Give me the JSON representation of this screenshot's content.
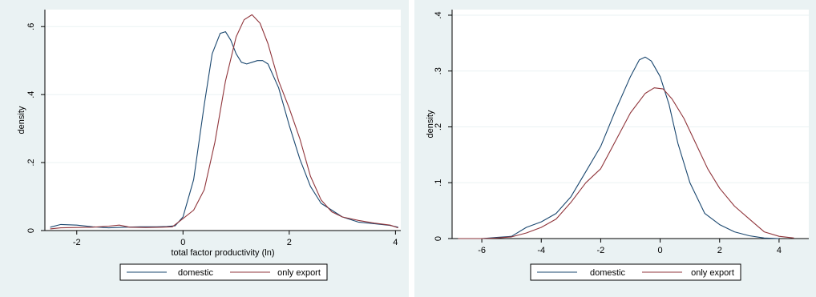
{
  "colors": {
    "domestic": "#1a476f",
    "only_export": "#90353b",
    "plot_bg": "#ffffff",
    "outer_bg": "#eaf2f3",
    "grid": "#eaf2f3"
  },
  "chart_data": [
    {
      "type": "line",
      "xlabel": "total factor productivity (ln)",
      "ylabel": "density",
      "xlim": [
        -2.6,
        4.1
      ],
      "ylim": [
        0,
        0.65
      ],
      "xticks": [
        {
          "v": -2,
          "label": "-2"
        },
        {
          "v": 0,
          "label": "0"
        },
        {
          "v": 2,
          "label": "2"
        },
        {
          "v": 4,
          "label": "4"
        }
      ],
      "yticks": [
        {
          "v": 0,
          "label": "0"
        },
        {
          "v": 0.2,
          "label": ".2"
        },
        {
          "v": 0.4,
          "label": ".4"
        },
        {
          "v": 0.6,
          "label": ".6"
        }
      ],
      "grid": true,
      "legend": "bottom",
      "series": [
        {
          "name": "domestic",
          "color_key": "domestic",
          "points": [
            [
              -2.5,
              0.01
            ],
            [
              -2.3,
              0.018
            ],
            [
              -2.0,
              0.016
            ],
            [
              -1.7,
              0.011
            ],
            [
              -1.4,
              0.008
            ],
            [
              -1.1,
              0.01
            ],
            [
              -0.8,
              0.011
            ],
            [
              -0.5,
              0.011
            ],
            [
              -0.3,
              0.012
            ],
            [
              -0.15,
              0.014
            ],
            [
              0,
              0.04
            ],
            [
              0.2,
              0.15
            ],
            [
              0.4,
              0.37
            ],
            [
              0.55,
              0.52
            ],
            [
              0.7,
              0.58
            ],
            [
              0.8,
              0.585
            ],
            [
              0.9,
              0.56
            ],
            [
              1.0,
              0.52
            ],
            [
              1.1,
              0.495
            ],
            [
              1.2,
              0.49
            ],
            [
              1.3,
              0.495
            ],
            [
              1.4,
              0.5
            ],
            [
              1.5,
              0.5
            ],
            [
              1.6,
              0.49
            ],
            [
              1.8,
              0.42
            ],
            [
              2.0,
              0.31
            ],
            [
              2.2,
              0.21
            ],
            [
              2.4,
              0.13
            ],
            [
              2.6,
              0.08
            ],
            [
              2.8,
              0.06
            ],
            [
              3.0,
              0.04
            ],
            [
              3.3,
              0.025
            ],
            [
              3.6,
              0.02
            ],
            [
              3.9,
              0.015
            ],
            [
              4.05,
              0.01
            ]
          ]
        },
        {
          "name": "only export",
          "color_key": "only_export",
          "points": [
            [
              -2.5,
              0.005
            ],
            [
              -2.3,
              0.008
            ],
            [
              -2.0,
              0.009
            ],
            [
              -1.7,
              0.01
            ],
            [
              -1.4,
              0.013
            ],
            [
              -1.2,
              0.016
            ],
            [
              -1.0,
              0.01
            ],
            [
              -0.7,
              0.009
            ],
            [
              -0.4,
              0.01
            ],
            [
              -0.2,
              0.011
            ],
            [
              0,
              0.035
            ],
            [
              0.2,
              0.06
            ],
            [
              0.4,
              0.12
            ],
            [
              0.6,
              0.26
            ],
            [
              0.8,
              0.44
            ],
            [
              1.0,
              0.57
            ],
            [
              1.15,
              0.62
            ],
            [
              1.3,
              0.635
            ],
            [
              1.45,
              0.61
            ],
            [
              1.6,
              0.55
            ],
            [
              1.8,
              0.44
            ],
            [
              2.0,
              0.36
            ],
            [
              2.2,
              0.27
            ],
            [
              2.4,
              0.16
            ],
            [
              2.6,
              0.09
            ],
            [
              2.8,
              0.055
            ],
            [
              3.0,
              0.04
            ],
            [
              3.3,
              0.03
            ],
            [
              3.6,
              0.022
            ],
            [
              3.9,
              0.016
            ],
            [
              4.05,
              0.008
            ]
          ]
        }
      ]
    },
    {
      "type": "line",
      "xlabel": "",
      "ylabel": "density",
      "xlim": [
        -7,
        5
      ],
      "ylim": [
        0,
        0.41
      ],
      "xticks": [
        {
          "v": -6,
          "label": "-6"
        },
        {
          "v": -4,
          "label": "-4"
        },
        {
          "v": -2,
          "label": "-2"
        },
        {
          "v": 0,
          "label": "0"
        },
        {
          "v": 2,
          "label": "2"
        },
        {
          "v": 4,
          "label": "4"
        }
      ],
      "yticks": [
        {
          "v": 0,
          "label": "0"
        },
        {
          "v": 0.1,
          "label": ".1"
        },
        {
          "v": 0.2,
          "label": ".2"
        },
        {
          "v": 0.3,
          "label": ".3"
        },
        {
          "v": 0.4,
          "label": ".4"
        }
      ],
      "grid": true,
      "legend": "bottom",
      "series": [
        {
          "name": "domestic",
          "color_key": "domestic",
          "points": [
            [
              -6.0,
              0.0
            ],
            [
              -5.5,
              0.002
            ],
            [
              -5.0,
              0.004
            ],
            [
              -4.5,
              0.02
            ],
            [
              -4.0,
              0.03
            ],
            [
              -3.5,
              0.045
            ],
            [
              -3.0,
              0.075
            ],
            [
              -2.5,
              0.12
            ],
            [
              -2.0,
              0.165
            ],
            [
              -1.5,
              0.23
            ],
            [
              -1.0,
              0.29
            ],
            [
              -0.7,
              0.32
            ],
            [
              -0.5,
              0.325
            ],
            [
              -0.3,
              0.318
            ],
            [
              0,
              0.29
            ],
            [
              0.3,
              0.24
            ],
            [
              0.6,
              0.17
            ],
            [
              1.0,
              0.1
            ],
            [
              1.5,
              0.045
            ],
            [
              2.0,
              0.025
            ],
            [
              2.5,
              0.012
            ],
            [
              3.0,
              0.005
            ],
            [
              3.5,
              0.001
            ],
            [
              4.0,
              0.0
            ]
          ]
        },
        {
          "name": "only export",
          "color_key": "only_export",
          "points": [
            [
              -6.8,
              0.0
            ],
            [
              -6.0,
              0.0
            ],
            [
              -5.5,
              0.001
            ],
            [
              -5.0,
              0.003
            ],
            [
              -4.5,
              0.01
            ],
            [
              -4.0,
              0.02
            ],
            [
              -3.5,
              0.035
            ],
            [
              -3.0,
              0.065
            ],
            [
              -2.5,
              0.1
            ],
            [
              -2.0,
              0.125
            ],
            [
              -1.5,
              0.175
            ],
            [
              -1.0,
              0.225
            ],
            [
              -0.5,
              0.26
            ],
            [
              -0.2,
              0.27
            ],
            [
              0.1,
              0.268
            ],
            [
              0.4,
              0.25
            ],
            [
              0.8,
              0.215
            ],
            [
              1.2,
              0.17
            ],
            [
              1.6,
              0.125
            ],
            [
              2.0,
              0.09
            ],
            [
              2.5,
              0.058
            ],
            [
              3.0,
              0.035
            ],
            [
              3.5,
              0.012
            ],
            [
              4.0,
              0.004
            ],
            [
              4.5,
              0.001
            ]
          ]
        }
      ]
    }
  ]
}
